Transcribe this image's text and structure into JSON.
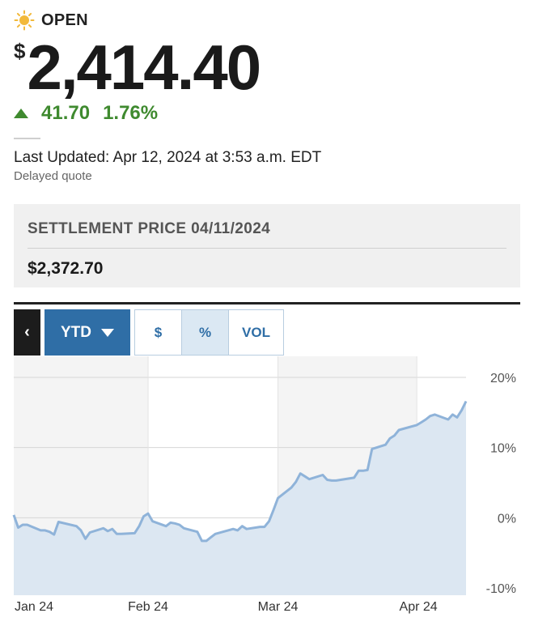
{
  "quote": {
    "status": "OPEN",
    "status_icon": "sun-icon",
    "currency_symbol": "$",
    "price": "2,414.40",
    "change": "41.70",
    "change_percent": "1.76%",
    "change_direction": "up",
    "last_updated": "Last Updated: Apr 12, 2024 at 3:53 a.m. EDT",
    "delayed_note": "Delayed quote"
  },
  "settlement": {
    "label": "SETTLEMENT PRICE 04/11/2024",
    "value": "$2,372.70"
  },
  "controls": {
    "back_label": "‹",
    "range_label": "YTD",
    "segments": [
      "$",
      "%",
      "VOL"
    ],
    "active_segment": "%"
  },
  "colors": {
    "up": "#3f8a2f",
    "accent": "#2f6ea6",
    "line": "#8fb3d9",
    "area": "#dce7f2"
  },
  "chart_data": {
    "type": "area",
    "x_tick_labels": [
      "Jan 24",
      "Feb 24",
      "Mar 24",
      "Apr 24"
    ],
    "y_tick_labels": [
      "20%",
      "10%",
      "0%",
      "-10%"
    ],
    "y_ticks": [
      20,
      10,
      0,
      -10
    ],
    "ylim": [
      -10,
      20
    ],
    "grid": true,
    "x": [
      "2024-01-02",
      "2024-01-03",
      "2024-01-04",
      "2024-01-05",
      "2024-01-08",
      "2024-01-09",
      "2024-01-10",
      "2024-01-11",
      "2024-01-12",
      "2024-01-16",
      "2024-01-17",
      "2024-01-18",
      "2024-01-19",
      "2024-01-22",
      "2024-01-23",
      "2024-01-24",
      "2024-01-25",
      "2024-01-26",
      "2024-01-29",
      "2024-01-30",
      "2024-01-31",
      "2024-02-01",
      "2024-02-02",
      "2024-02-05",
      "2024-02-06",
      "2024-02-07",
      "2024-02-08",
      "2024-02-09",
      "2024-02-12",
      "2024-02-13",
      "2024-02-14",
      "2024-02-15",
      "2024-02-16",
      "2024-02-20",
      "2024-02-21",
      "2024-02-22",
      "2024-02-23",
      "2024-02-26",
      "2024-02-27",
      "2024-02-28",
      "2024-02-29",
      "2024-03-01",
      "2024-03-04",
      "2024-03-05",
      "2024-03-06",
      "2024-03-07",
      "2024-03-08",
      "2024-03-11",
      "2024-03-12",
      "2024-03-13",
      "2024-03-14",
      "2024-03-15",
      "2024-03-18",
      "2024-03-19",
      "2024-03-20",
      "2024-03-21",
      "2024-03-22",
      "2024-03-25",
      "2024-03-26",
      "2024-03-27",
      "2024-03-28",
      "2024-04-01",
      "2024-04-02",
      "2024-04-03",
      "2024-04-04",
      "2024-04-05",
      "2024-04-08",
      "2024-04-09",
      "2024-04-10",
      "2024-04-11",
      "2024-04-12"
    ],
    "series": [
      {
        "values": [
          0.4,
          -1.4,
          -1.0,
          -1.0,
          -1.8,
          -1.8,
          -2.0,
          -2.4,
          -0.6,
          -1.2,
          -1.8,
          -3.0,
          -2.1,
          -1.5,
          -1.9,
          -1.6,
          -2.3,
          -2.3,
          -2.2,
          -1.2,
          0.2,
          0.6,
          -0.5,
          -1.2,
          -0.7,
          -0.8,
          -1.0,
          -1.5,
          -2.0,
          -3.3,
          -3.3,
          -2.8,
          -2.3,
          -1.6,
          -1.8,
          -1.2,
          -1.6,
          -1.3,
          -1.3,
          -0.5,
          1.1,
          2.8,
          4.3,
          5.1,
          6.3,
          5.9,
          5.5,
          6.1,
          5.4,
          5.3,
          5.3,
          5.4,
          5.7,
          6.7,
          6.7,
          6.8,
          9.8,
          10.4,
          11.3,
          11.7,
          12.5,
          13.2,
          13.6,
          14.0,
          14.5,
          14.7,
          14.0,
          14.7,
          14.3,
          15.3,
          16.6
        ]
      }
    ]
  }
}
